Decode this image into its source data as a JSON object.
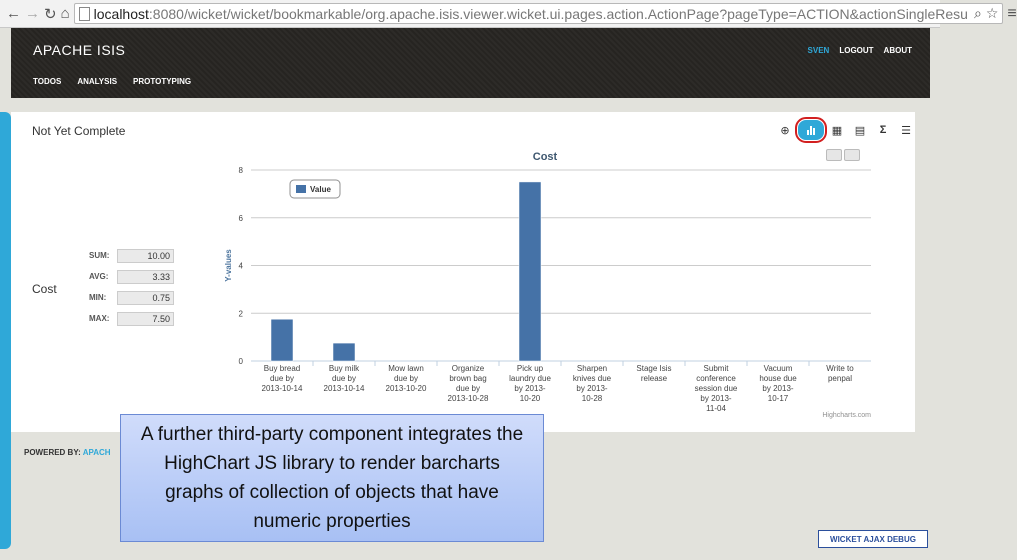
{
  "browser": {
    "url_host": "localhost",
    "url_rest": ":8080/wicket/wicket/bookmarkable/org.apache.isis.viewer.wicket.ui.pages.action.ActionPage?pageType=ACTION&actionSingleResu"
  },
  "header": {
    "brand": "APACHE ISIS",
    "nav": [
      "TODOS",
      "ANALYSIS",
      "PROTOTYPING"
    ],
    "user": "SVEN",
    "logout": "LOGOUT",
    "about": "ABOUT"
  },
  "card": {
    "title": "Not Yet Complete",
    "cost_label": "Cost",
    "stats": [
      {
        "label": "SUM:",
        "value": "10.00"
      },
      {
        "label": "AVG:",
        "value": "3.33"
      },
      {
        "label": "MIN:",
        "value": "0.75"
      },
      {
        "label": "MAX:",
        "value": "7.50"
      }
    ]
  },
  "chart_data": {
    "type": "bar",
    "title": "Cost",
    "ylabel": "Y-values",
    "ylim": [
      0,
      8
    ],
    "yticks": [
      0,
      2,
      4,
      6,
      8
    ],
    "legend": "Value",
    "credit": "Highcharts.com",
    "color": "#4572a7",
    "categories": [
      [
        "Buy bread",
        "due by",
        "2013-10-14"
      ],
      [
        "Buy milk",
        "due by",
        "2013-10-14"
      ],
      [
        "Mow lawn",
        "due by",
        "2013-10-20"
      ],
      [
        "Organize",
        "brown bag",
        "due by",
        "2013-10-28"
      ],
      [
        "Pick up",
        "laundry due",
        "by 2013-",
        "10-20"
      ],
      [
        "Sharpen",
        "knives due",
        "by 2013-",
        "10-28"
      ],
      [
        "Stage Isis",
        "release"
      ],
      [
        "Submit",
        "conference",
        "session due",
        "by 2013-",
        "11-04"
      ],
      [
        "Vacuum",
        "house due",
        "by 2013-",
        "10-17"
      ],
      [
        "Write to",
        "penpal"
      ]
    ],
    "values": [
      1.75,
      0.75,
      0,
      0,
      7.5,
      0,
      0,
      0,
      0,
      0
    ]
  },
  "footer": {
    "powered_by": "POWERED BY:",
    "powered_link": "APACH",
    "callout": "A further third-party component integrates the HighChart JS library to render barcharts graphs of collection of objects that have numeric properties",
    "debug": "WICKET AJAX DEBUG"
  }
}
